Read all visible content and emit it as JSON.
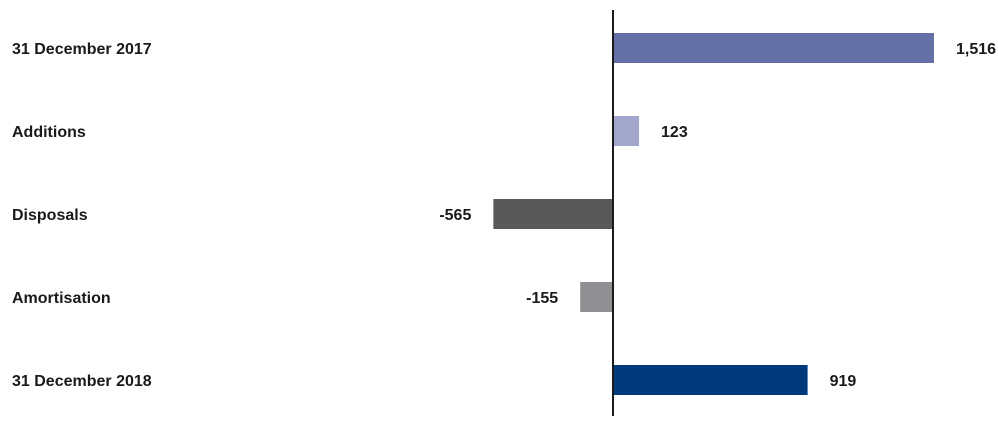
{
  "chart_data": {
    "type": "bar",
    "orientation": "horizontal",
    "categories": [
      "31 December 2017",
      "Additions",
      "Disposals",
      "Amortisation",
      "31 December 2018"
    ],
    "values": [
      1516,
      123,
      -565,
      -155,
      919
    ],
    "value_labels": [
      "1,516",
      "123",
      "-565",
      "-155",
      "919"
    ],
    "bar_colors": [
      "#6470a6",
      "#a1a7cc",
      "#58595b",
      "#8f9093",
      "#003a7d"
    ],
    "title": "",
    "xlabel": "",
    "ylabel": "",
    "xlim": [
      -2900,
      1700
    ],
    "grid": false,
    "legend": "none",
    "axis_color": "#1a1a1a"
  }
}
